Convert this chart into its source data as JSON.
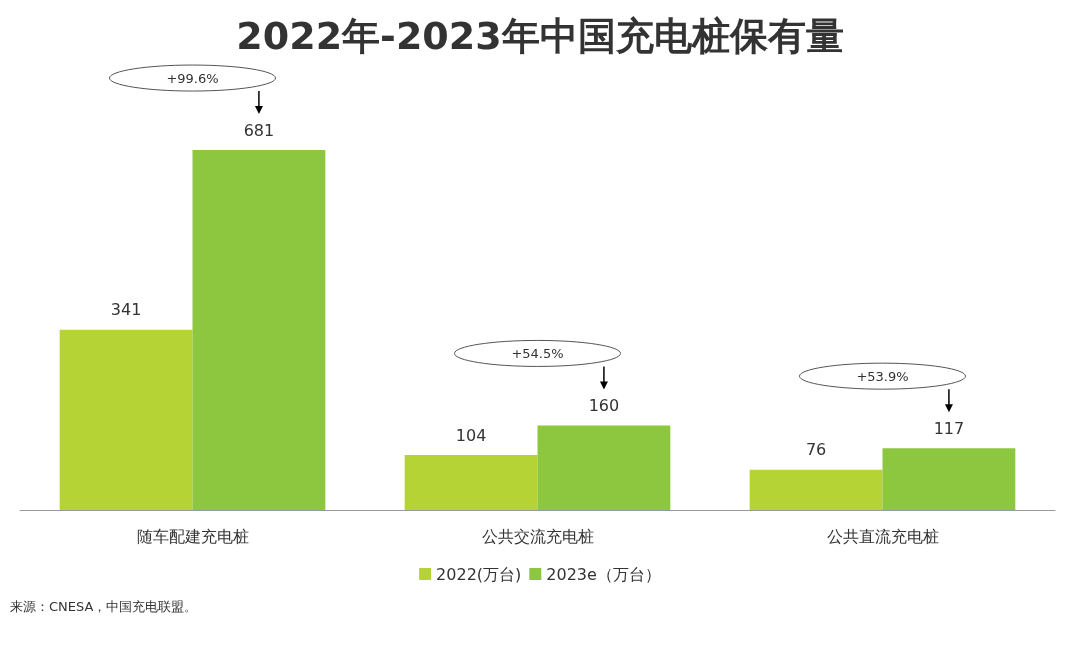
{
  "chart_data": {
    "type": "bar",
    "title": "2022年-2023年中国充电桩保有量",
    "categories": [
      "随车配建充电桩",
      "公共交流充电桩",
      "公共直流充电桩"
    ],
    "series": [
      {
        "name": "2022(万台)",
        "color": "#b5d334",
        "values": [
          341,
          104,
          76
        ]
      },
      {
        "name": "2023e（万台）",
        "color": "#8dc63f",
        "values": [
          681,
          160,
          117
        ]
      }
    ],
    "data_labels": true,
    "grid": false,
    "legend": "bottom",
    "tick_labels": "x",
    "annotations": [
      "+99.6%",
      "+54.5%",
      "+53.9%",
      "来源：CNESA，中国充电联盟。"
    ]
  }
}
